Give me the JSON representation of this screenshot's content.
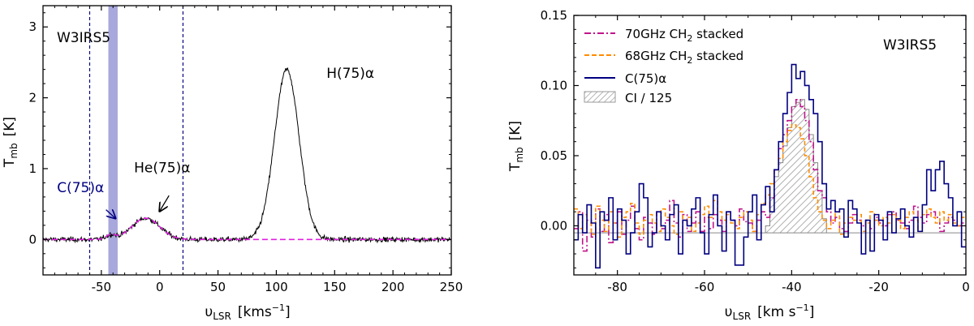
{
  "chart_data": [
    {
      "type": "line",
      "title": "",
      "source_label": "W3IRS5",
      "xlabel": {
        "main": "υ",
        "sub": "LSR",
        "unit_pre": "[kms",
        "unit_sup": "−1",
        "unit_post": "]"
      },
      "ylabel": {
        "main": "T",
        "sub": "mb",
        "unit": "[K]"
      },
      "xlim": [
        -100,
        250
      ],
      "ylim": [
        -0.5,
        3.3
      ],
      "xticks": [
        -50,
        0,
        50,
        100,
        150,
        200,
        250
      ],
      "yticks": [
        0,
        1,
        2,
        3
      ],
      "series": [
        {
          "name": "spectrum",
          "color": "#000000",
          "gaussians": [
            {
              "amp": 0.06,
              "center": -42,
              "sigma": 4
            },
            {
              "amp": 0.3,
              "center": -12,
              "sigma": 12
            },
            {
              "amp": 2.4,
              "center": 109,
              "sigma": 10.5
            }
          ],
          "noise_rms": 0.025
        },
        {
          "name": "fit",
          "color": "#e020e0",
          "dash": "dashed",
          "gaussians": [
            {
              "amp": 0.06,
              "center": -42,
              "sigma": 4
            },
            {
              "amp": 0.3,
              "center": -12,
              "sigma": 12
            }
          ]
        }
      ],
      "vlines": [
        {
          "x": -60,
          "color": "#000080"
        },
        {
          "x": 20,
          "color": "#000080"
        }
      ],
      "shaded_band": {
        "x0": -44,
        "x1": -36,
        "color": "#9999d6"
      },
      "annotations": [
        {
          "text": "H(75)α",
          "x": 143,
          "y": 2.28,
          "color": "#000000"
        },
        {
          "text": "He(75)α",
          "x": -22,
          "y": 0.95,
          "color": "#000000",
          "arrow_to": [
            0,
            0.4
          ],
          "arrow_from": [
            8,
            0.62
          ]
        },
        {
          "text": "C(75)α",
          "x": -88,
          "y": 0.67,
          "color": "#000080",
          "arrow_to": [
            -38,
            0.3
          ],
          "arrow_from": [
            -46,
            0.42
          ]
        }
      ]
    },
    {
      "type": "line",
      "title": "",
      "source_label": "W3IRS5",
      "xlabel": {
        "main": "υ",
        "sub": "LSR",
        "unit_pre": "[km s",
        "unit_sup": "−1",
        "unit_post": "]"
      },
      "ylabel": {
        "main": "T",
        "sub": "mb",
        "unit": "[K]"
      },
      "xlim": [
        -90,
        0
      ],
      "ylim": [
        -0.035,
        0.15
      ],
      "xticks": [
        -80,
        -60,
        -40,
        -20,
        0
      ],
      "yticks": [
        0.0,
        0.05,
        0.1,
        0.15
      ],
      "ytick_labels": [
        "0.00",
        "0.05",
        "0.10",
        "0.15"
      ],
      "x_start": -90,
      "dx": 1.0,
      "series": [
        {
          "name": "70GHz CH₂ stacked",
          "label_main": "70GHz CH",
          "label_sub": "2",
          "label_post": " stacked",
          "color": "#c0148a",
          "dash": "dashdot",
          "values": [
            -0.002,
            0.01,
            -0.018,
            0.004,
            -0.008,
            0.012,
            -0.004,
            0.008,
            -0.012,
            0.002,
            0.01,
            -0.006,
            0.004,
            0.014,
            -0.002,
            -0.01,
            0.006,
            0.002,
            -0.006,
            0.01,
            -0.002,
            0.004,
            0.018,
            0.002,
            -0.008,
            0.008,
            -0.004,
            0.002,
            0.01,
            -0.004,
            0.006,
            -0.002,
            0.008,
            0.004,
            -0.004,
            0.01,
            0.004,
            0.0,
            0.012,
            0.003,
            0.002,
            -0.004,
            0.004,
            0.01,
            0.006,
            0.02,
            0.04,
            0.055,
            0.065,
            0.075,
            0.085,
            0.09,
            0.085,
            0.075,
            0.06,
            0.04,
            0.025,
            0.02,
            0.01,
            0.002,
            0.006,
            -0.002,
            -0.004,
            0.002,
            0.008,
            0.004,
            0.0,
            0.004,
            -0.002,
            0.006,
            0.002,
            0.0,
            0.008,
            0.01,
            0.004,
            0.002,
            -0.002,
            0.004,
            0.014,
            0.006,
            0.002,
            0.008,
            0.01,
            0.006,
            -0.004,
            0.002,
            0.006,
            0.004,
            0.0,
            0.002
          ]
        },
        {
          "name": "68GHz CH₂ stacked",
          "label_main": "68GHz CH",
          "label_sub": "2",
          "label_post": " stacked",
          "color": "#ff8c00",
          "dash": "dashed",
          "values": [
            0.012,
            -0.002,
            0.008,
            0.002,
            -0.006,
            0.014,
            0.004,
            -0.004,
            0.01,
            0.002,
            -0.008,
            0.006,
            0.01,
            0.016,
            0.002,
            -0.006,
            0.004,
            0.008,
            0.002,
            -0.004,
            0.012,
            0.006,
            0.0,
            -0.006,
            0.01,
            0.004,
            0.006,
            -0.004,
            0.002,
            0.008,
            0.014,
            0.006,
            0.018,
            0.01,
            0.004,
            0.008,
            0.002,
            -0.002,
            0.006,
            0.01,
            0.004,
            -0.004,
            0.008,
            0.016,
            0.022,
            0.03,
            0.04,
            0.048,
            0.06,
            0.068,
            0.072,
            0.07,
            0.062,
            0.05,
            0.035,
            0.02,
            0.01,
            0.004,
            -0.002,
            0.004,
            0.01,
            -0.006,
            0.002,
            0.006,
            0.004,
            0.008,
            -0.004,
            0.002,
            0.01,
            0.004,
            0.0,
            0.006,
            0.002,
            0.008,
            0.004,
            -0.002,
            0.006,
            0.01,
            0.004,
            -0.004,
            0.008,
            0.012,
            0.006,
            0.002,
            0.01,
            0.004,
            0.008,
            0.002,
            0.0,
            0.006
          ]
        },
        {
          "name": "C(75)α",
          "color": "#000080",
          "step": true,
          "values": [
            -0.01,
            0.008,
            -0.005,
            0.015,
            0.002,
            -0.03,
            0.01,
            0.004,
            0.02,
            -0.01,
            0.012,
            0.004,
            -0.02,
            -0.005,
            0.01,
            0.03,
            0.02,
            -0.015,
            -0.005,
            0.01,
            0.0,
            -0.01,
            0.008,
            0.015,
            -0.02,
            0.004,
            0.0,
            0.012,
            0.02,
            -0.005,
            -0.02,
            0.008,
            0.022,
            0.0,
            -0.018,
            0.01,
            0.004,
            -0.028,
            -0.028,
            -0.008,
            0.01,
            0.022,
            -0.01,
            0.015,
            0.028,
            0.01,
            0.04,
            0.06,
            0.08,
            0.095,
            0.115,
            0.105,
            0.11,
            0.1,
            0.09,
            0.08,
            0.06,
            0.03,
            0.012,
            0.018,
            0.01,
            0.012,
            -0.008,
            0.018,
            0.012,
            0.002,
            -0.02,
            0.004,
            -0.018,
            0.008,
            0.004,
            -0.01,
            0.01,
            -0.005,
            0.005,
            0.012,
            0.0,
            -0.008,
            0.006,
            -0.004,
            0.015,
            0.04,
            0.025,
            0.04,
            0.046,
            0.03,
            0.02,
            0.0,
            0.01,
            -0.015
          ]
        },
        {
          "name": "CI / 125",
          "color": "#888888",
          "hatched": true,
          "values": [
            0,
            0,
            0,
            0,
            0,
            0,
            0,
            0,
            0,
            0,
            0,
            0,
            0,
            0,
            0,
            0,
            0,
            0,
            0,
            0,
            0,
            0,
            0,
            0,
            0,
            0,
            0,
            0,
            0,
            0,
            0,
            0,
            0,
            0,
            0,
            0,
            0,
            0,
            0,
            0,
            0,
            0,
            0,
            0,
            0.005,
            0.025,
            0.04,
            0.05,
            0.062,
            0.075,
            0.09,
            0.093,
            0.095,
            0.088,
            0.07,
            0.05,
            0.03,
            0.01,
            0,
            0,
            0,
            0,
            0,
            0,
            0,
            0,
            0,
            0,
            0,
            0,
            0,
            0,
            0,
            0,
            0,
            0,
            0,
            0,
            0,
            0,
            0,
            0,
            0,
            0,
            0,
            0,
            0,
            0,
            0,
            0
          ]
        }
      ],
      "baseline": -0.005,
      "legend_position": "top-left"
    }
  ]
}
